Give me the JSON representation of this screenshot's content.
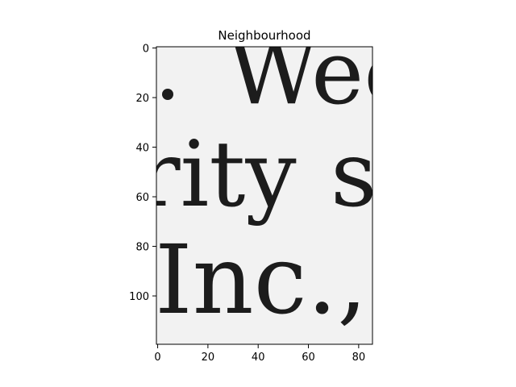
{
  "chart_data": {
    "type": "image",
    "title": "Neighbourhood",
    "xlabel": "",
    "ylabel": "",
    "xlim": [
      -0.5,
      85.5
    ],
    "ylim": [
      119.5,
      -0.5
    ],
    "x_ticks": [
      0,
      20,
      40,
      60,
      80
    ],
    "y_ticks": [
      0,
      20,
      40,
      60,
      80,
      100
    ],
    "grid": false,
    "colormap": "gray",
    "image_text": [
      ". Wee",
      "rity s",
      "Inc.,"
    ]
  }
}
